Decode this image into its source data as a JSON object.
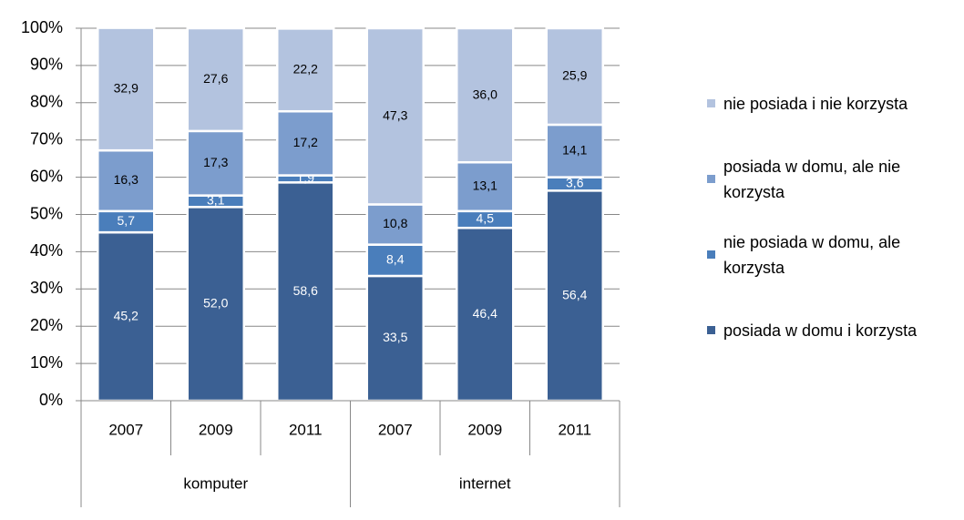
{
  "chart_data": {
    "type": "stacked-bar",
    "categories": [
      "2007",
      "2009",
      "2011",
      "2007",
      "2009",
      "2011"
    ],
    "groups": [
      {
        "name": "komputer",
        "size": 3
      },
      {
        "name": "internet",
        "size": 3
      }
    ],
    "series": [
      {
        "name": "posiada w domu i korzysta",
        "color": "#3b6093",
        "label_color": "#ffffff",
        "values": [
          45.2,
          52.0,
          58.6,
          33.5,
          46.4,
          56.4
        ],
        "value_labels": [
          "45,2",
          "52,0",
          "58,6",
          "33,5",
          "46,4",
          "56,4"
        ]
      },
      {
        "name": "nie posiada w domu, ale korzysta",
        "color": "#4a7ebb",
        "label_color": "#ffffff",
        "values": [
          5.7,
          3.1,
          1.9,
          8.4,
          4.5,
          3.6
        ],
        "value_labels": [
          "5,7",
          "3,1",
          "1,9",
          "8,4",
          "4,5",
          "3,6"
        ]
      },
      {
        "name": "posiada w domu, ale nie korzysta",
        "color": "#7c9dcd",
        "label_color": "#000000",
        "values": [
          16.3,
          17.3,
          17.2,
          10.8,
          13.1,
          14.1
        ],
        "value_labels": [
          "16,3",
          "17,3",
          "17,2",
          "10,8",
          "13,1",
          "14,1"
        ]
      },
      {
        "name": "nie posiada i nie korzysta",
        "color": "#b3c3df",
        "label_color": "#000000",
        "values": [
          32.9,
          27.6,
          22.2,
          47.3,
          36.0,
          25.9
        ],
        "value_labels": [
          "32,9",
          "27,6",
          "22,2",
          "47,3",
          "36,0",
          "25,9"
        ]
      }
    ],
    "ylim": [
      0,
      100
    ],
    "yticks": [
      {
        "value": 0,
        "label": "0%"
      },
      {
        "value": 10,
        "label": "10%"
      },
      {
        "value": 20,
        "label": "20%"
      },
      {
        "value": 30,
        "label": "30%"
      },
      {
        "value": 40,
        "label": "40%"
      },
      {
        "value": 50,
        "label": "50%"
      },
      {
        "value": 60,
        "label": "60%"
      },
      {
        "value": 70,
        "label": "70%"
      },
      {
        "value": 80,
        "label": "80%"
      },
      {
        "value": 90,
        "label": "90%"
      },
      {
        "value": 100,
        "label": "100%"
      }
    ],
    "grid": true,
    "legend": "right"
  }
}
